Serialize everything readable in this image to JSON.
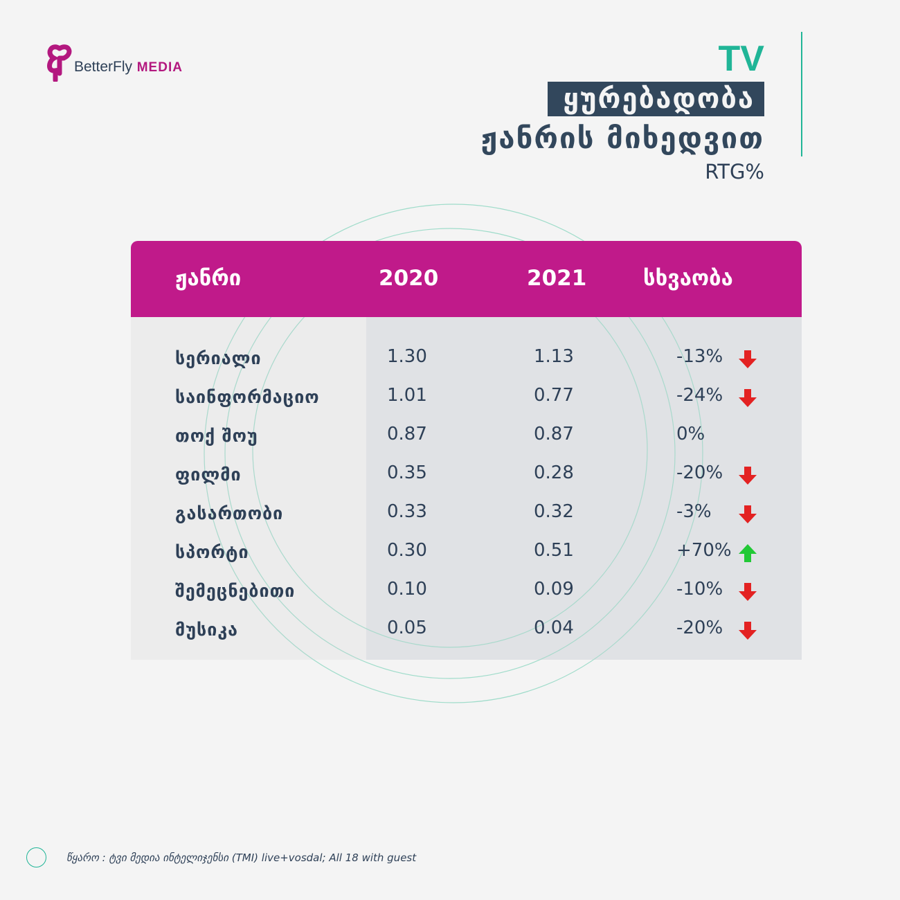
{
  "brand": {
    "name_part1": "BetterFly",
    "name_part2": "MEDIA",
    "color": "#b3187f"
  },
  "header": {
    "medium": "TV",
    "title_line1": "ყურებადობა",
    "title_line2": "ჟანრის მიხედვით",
    "unit": "RTG%",
    "accent_color": "#20b597",
    "title_bg_color": "#32475c"
  },
  "table": {
    "header_color": "#c01a8a",
    "columns": [
      "ჟანრი",
      "2020",
      "2021",
      "სხვაობა"
    ],
    "rows": [
      {
        "genre": "სერიალი",
        "v2020": "1.30",
        "v2021": "1.13",
        "diff": "-13%",
        "trend": "down"
      },
      {
        "genre": "საინფორმაციო",
        "v2020": "1.01",
        "v2021": "0.77",
        "diff": "-24%",
        "trend": "down"
      },
      {
        "genre": "თოქ შოუ",
        "v2020": "0.87",
        "v2021": "0.87",
        "diff": "0%",
        "trend": "none"
      },
      {
        "genre": "ფილმი",
        "v2020": "0.35",
        "v2021": "0.28",
        "diff": "-20%",
        "trend": "down"
      },
      {
        "genre": "გასართობი",
        "v2020": "0.33",
        "v2021": "0.32",
        "diff": "-3%",
        "trend": "down"
      },
      {
        "genre": "სპორტი",
        "v2020": "0.30",
        "v2021": "0.51",
        "diff": "+70%",
        "trend": "up"
      },
      {
        "genre": "შემეცნებითი",
        "v2020": "0.10",
        "v2021": "0.09",
        "diff": "-10%",
        "trend": "down"
      },
      {
        "genre": "მუსიკა",
        "v2020": "0.05",
        "v2021": "0.04",
        "diff": "-20%",
        "trend": "down"
      }
    ],
    "trend_colors": {
      "down": "#e32222",
      "up": "#22c936"
    }
  },
  "chart_data": {
    "type": "table",
    "title": "ყურებადობა ჟანრის მიხედვით",
    "unit": "RTG%",
    "columns": [
      "ჟანრი",
      "2020",
      "2021",
      "სხვაობა"
    ],
    "categories": [
      "სერიალი",
      "საინფორმაციო",
      "თოქ შოუ",
      "ფილმი",
      "გასართობი",
      "სპორტი",
      "შემეცნებითი",
      "მუსიკა"
    ],
    "series": [
      {
        "name": "2020",
        "values": [
          1.3,
          1.01,
          0.87,
          0.35,
          0.33,
          0.3,
          0.1,
          0.05
        ]
      },
      {
        "name": "2021",
        "values": [
          1.13,
          0.77,
          0.87,
          0.28,
          0.32,
          0.51,
          0.09,
          0.04
        ]
      },
      {
        "name": "სხვაობა",
        "values": [
          -13,
          -24,
          0,
          -20,
          -3,
          70,
          -10,
          -20
        ]
      }
    ]
  },
  "footer": {
    "source": "წყარო : ტვი მედია ინტელიჯენსი (TMI) live+vosdal; All 18 with guest"
  }
}
